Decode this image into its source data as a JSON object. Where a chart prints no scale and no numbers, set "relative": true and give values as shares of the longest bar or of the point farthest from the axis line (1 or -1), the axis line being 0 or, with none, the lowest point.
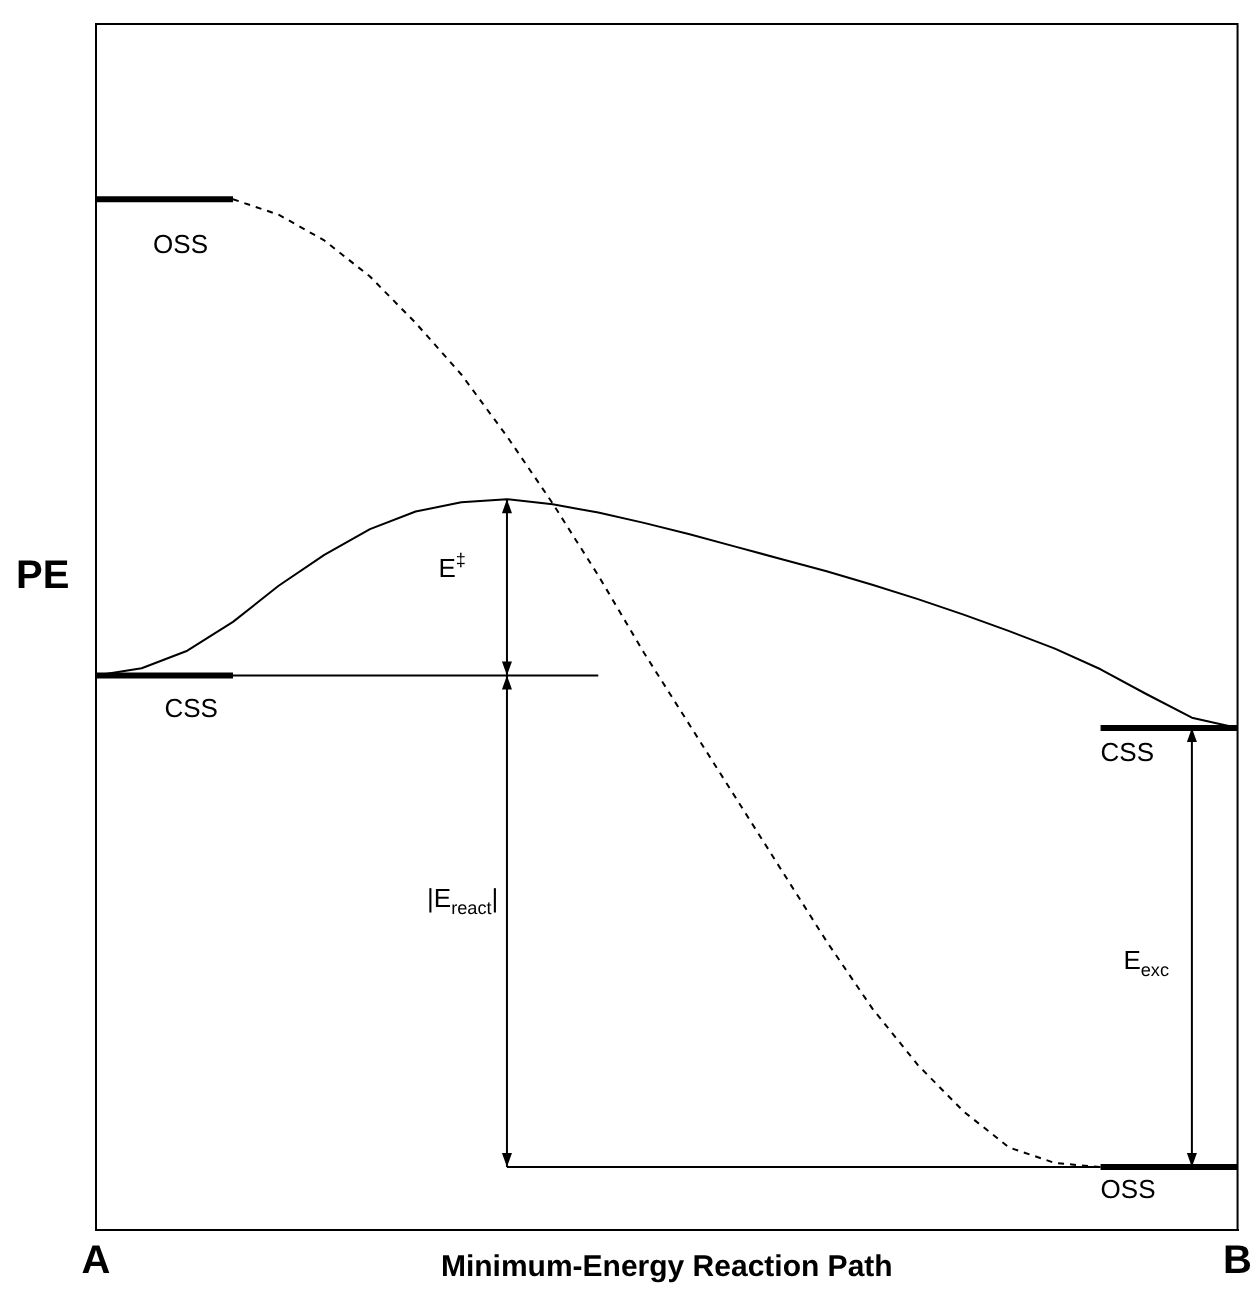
{
  "chart_data": {
    "type": "line",
    "relative": true,
    "xlabel": "Minimum-Energy Reaction Path",
    "ylabel": "PE",
    "categories": [
      "A",
      null,
      null,
      null,
      null,
      null,
      null,
      null,
      null,
      null,
      null,
      null,
      null,
      null,
      null,
      null,
      null,
      null,
      null,
      null,
      null,
      null,
      null,
      null,
      null,
      "B"
    ],
    "series": [
      {
        "color": "#000000",
        "line_style": "solid",
        "values": [
          0.538,
          0.545,
          0.562,
          0.59,
          0.625,
          0.655,
          0.68,
          0.697,
          0.706,
          0.709,
          0.704,
          0.696,
          0.686,
          0.675,
          0.663,
          0.651,
          0.639,
          0.626,
          0.612,
          0.597,
          0.581,
          0.564,
          0.544,
          0.52,
          0.497,
          0.487
        ]
      },
      {
        "color": "#000000",
        "line_style": "dashed",
        "values": [
          null,
          null,
          null,
          1,
          0.985,
          0.96,
          0.925,
          0.88,
          0.83,
          0.77,
          0.705,
          0.635,
          0.56,
          0.49,
          0.42,
          0.35,
          0.28,
          0.215,
          0.16,
          0.115,
          0.08,
          0.065,
          0.061,
          null,
          null,
          null
        ]
      },
      {
        "color": "#000000",
        "line_style": "solid",
        "values": [
          1,
          1,
          1,
          1,
          null,
          null,
          null,
          null,
          null,
          null,
          null,
          null,
          null,
          null,
          null,
          null,
          null,
          null,
          null,
          null,
          null,
          null,
          null,
          null,
          null,
          null
        ]
      },
      {
        "color": "#000000",
        "line_style": "solid",
        "values": [
          0.538,
          0.538,
          0.538,
          0.538,
          null,
          null,
          null,
          null,
          null,
          null,
          null,
          null,
          null,
          null,
          null,
          null,
          null,
          null,
          null,
          null,
          null,
          null,
          null,
          null,
          null,
          null
        ]
      },
      {
        "color": "#000000",
        "line_style": "solid",
        "values": [
          null,
          null,
          null,
          0.538,
          0.538,
          0.538,
          0.538,
          0.538,
          0.538,
          0.538,
          0.538,
          0.538,
          null,
          null,
          null,
          null,
          null,
          null,
          null,
          null,
          null,
          null,
          null,
          null,
          null,
          null
        ]
      },
      {
        "color": "#000000",
        "line_style": "solid",
        "values": [
          null,
          null,
          null,
          null,
          null,
          null,
          null,
          null,
          null,
          0.061,
          0.061,
          0.061,
          0.061,
          0.061,
          0.061,
          0.061,
          0.061,
          0.061,
          0.061,
          0.061,
          0.061,
          0.061,
          0.061,
          null,
          null,
          null
        ]
      },
      {
        "color": "#000000",
        "line_style": "solid",
        "values": [
          null,
          null,
          null,
          null,
          null,
          null,
          null,
          null,
          null,
          null,
          null,
          null,
          null,
          null,
          null,
          null,
          null,
          null,
          null,
          null,
          null,
          null,
          0.487,
          0.487,
          0.487,
          0.487
        ]
      },
      {
        "color": "#000000",
        "line_style": "solid",
        "values": [
          null,
          null,
          null,
          null,
          null,
          null,
          null,
          null,
          null,
          null,
          null,
          null,
          null,
          null,
          null,
          null,
          null,
          null,
          null,
          null,
          null,
          null,
          0.061,
          0.061,
          0.061,
          0.061
        ]
      }
    ],
    "annotations": [
      "OSS",
      "CSS",
      "E$^{‡}$",
      "|E$_{react}$|",
      "CSS",
      "E$_{exc}$",
      "OSS"
    ]
  }
}
